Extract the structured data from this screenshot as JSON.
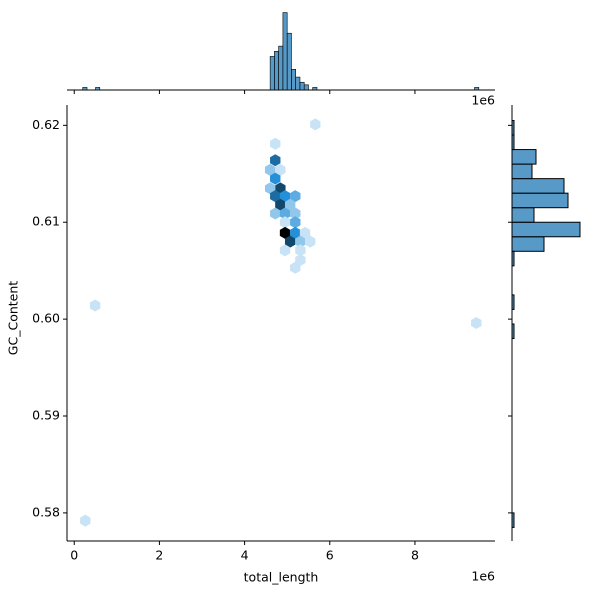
{
  "chart_data": {
    "type": "hexbin",
    "color": "#1f77b4",
    "xlabel": "total_length",
    "ylabel": "GC_Content",
    "x_offset_label": "1e6",
    "xlim": [
      -0.17,
      9.88
    ],
    "ylim": [
      0.5771,
      0.6221
    ],
    "xticks": [
      0,
      2,
      4,
      6,
      8
    ],
    "yticks": [
      0.58,
      0.59,
      {
        "value": 0.6,
        "label": "0.60"
      },
      0.61,
      0.62
    ],
    "x": [
      4.72,
      4.72,
      4.6,
      4.84,
      4.72,
      4.84,
      4.6,
      4.72,
      4.95,
      5.19,
      4.84,
      5.07,
      4.72,
      4.95,
      5.19,
      4.95,
      5.19,
      4.95,
      5.19,
      5.42,
      5.07,
      5.31,
      5.54,
      4.95,
      5.31,
      5.31,
      5.19,
      5.66,
      0.49,
      0.26,
      9.44
    ],
    "y": [
      0.6181,
      0.6164,
      0.6154,
      0.6154,
      0.6145,
      0.6135,
      0.6135,
      0.6127,
      0.6127,
      0.6127,
      0.6118,
      0.6118,
      0.6109,
      0.6109,
      0.6109,
      0.61,
      0.61,
      0.6089,
      0.6089,
      0.6089,
      0.608,
      0.608,
      0.608,
      0.6071,
      0.6071,
      0.6061,
      0.6053,
      0.6201,
      0.6014,
      0.5792,
      0.5996
    ],
    "counts": [
      1,
      5,
      2,
      1,
      4,
      6,
      2,
      5,
      4,
      3,
      6,
      2,
      2,
      3,
      2,
      1,
      3,
      8,
      4,
      1,
      6,
      2,
      1,
      1,
      1,
      1,
      1,
      1,
      1,
      1,
      1
    ],
    "top_histogram": {
      "ylim": [
        0,
        31
      ],
      "bins": [
        0.2,
        0.3,
        0.4,
        0.5,
        0.6,
        0.7,
        0.8,
        0.9,
        1.0,
        1.1,
        1.2,
        1.3,
        1.4,
        1.5,
        1.6,
        1.7,
        1.8,
        1.9,
        2.0,
        2.1,
        2.2,
        2.3,
        2.4,
        2.5,
        2.6,
        2.7,
        2.8,
        2.9,
        3.0,
        3.1,
        3.2,
        3.3,
        3.4,
        3.5,
        3.6,
        3.7,
        3.8,
        3.9,
        4.0,
        4.1,
        4.2,
        4.3,
        4.4,
        4.5,
        4.6,
        4.7,
        4.8,
        4.9,
        5.0,
        5.1,
        5.2,
        5.3,
        5.4,
        5.5,
        5.6,
        5.7,
        5.8,
        5.9,
        6.0,
        6.1,
        6.2,
        6.3,
        6.4,
        6.5,
        6.6,
        6.7,
        6.8,
        6.9,
        7.0,
        7.1,
        7.2,
        7.3,
        7.4,
        7.5,
        7.6,
        7.7,
        7.8,
        7.9,
        8.0,
        8.1,
        8.2,
        8.3,
        8.4,
        8.5,
        8.6,
        8.7,
        8.8,
        8.9,
        9.0,
        9.1,
        9.2,
        9.3,
        9.4,
        9.5
      ],
      "counts": [
        1,
        0,
        0,
        1,
        0,
        0,
        0,
        0,
        0,
        0,
        0,
        0,
        0,
        0,
        0,
        0,
        0,
        0,
        0,
        0,
        0,
        0,
        0,
        0,
        0,
        0,
        0,
        0,
        0,
        0,
        0,
        0,
        0,
        0,
        0,
        0,
        0,
        0,
        0,
        0,
        0,
        0,
        0,
        0,
        13,
        15,
        17,
        30,
        22,
        8,
        5,
        3,
        2,
        0,
        1,
        0,
        0,
        0,
        0,
        0,
        0,
        0,
        0,
        0,
        0,
        0,
        0,
        0,
        0,
        0,
        0,
        0,
        0,
        0,
        0,
        0,
        0,
        0,
        0,
        0,
        0,
        0,
        0,
        0,
        0,
        0,
        0,
        0,
        0,
        0,
        0,
        0,
        1
      ]
    },
    "right_histogram": {
      "xlim": [
        0,
        40
      ],
      "bins": [
        0.5785,
        0.58,
        0.5815,
        0.583,
        0.5845,
        0.586,
        0.5875,
        0.589,
        0.5905,
        0.592,
        0.5935,
        0.595,
        0.5965,
        0.598,
        0.5995,
        0.601,
        0.6025,
        0.604,
        0.6055,
        0.607,
        0.6085,
        0.61,
        0.6115,
        0.613,
        0.6145,
        0.616,
        0.6175,
        0.619,
        0.6205
      ],
      "counts": [
        1,
        0,
        0,
        0,
        0,
        0,
        0,
        0,
        0,
        0,
        0,
        0,
        0,
        1,
        0,
        1,
        0,
        0,
        1,
        16,
        34,
        11,
        28,
        26,
        10,
        12,
        1,
        1
      ]
    }
  }
}
